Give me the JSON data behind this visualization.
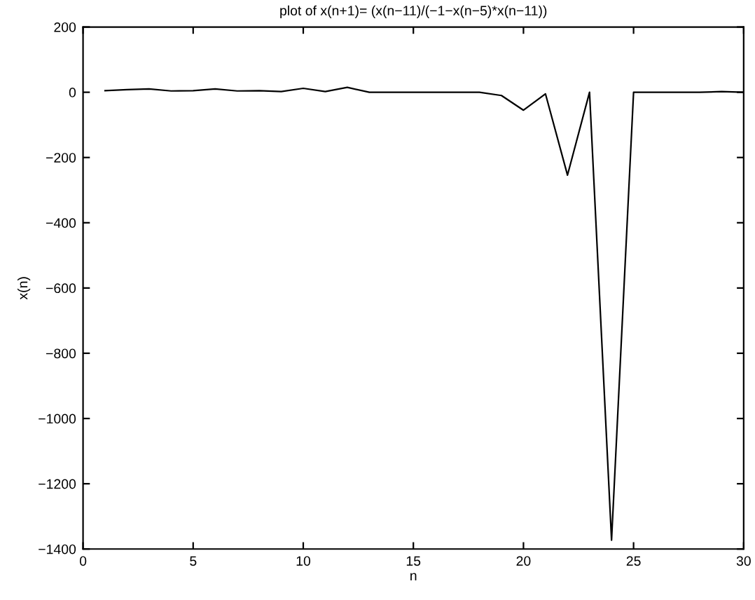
{
  "chart_data": {
    "type": "line",
    "title": "plot of x(n+1)= (x(n−11)/(−1−x(n−5)*x(n−11))",
    "xlabel": "n",
    "ylabel": "x(n)",
    "x": [
      1,
      2,
      3,
      4,
      5,
      6,
      7,
      8,
      9,
      10,
      11,
      12,
      13,
      14,
      15,
      16,
      17,
      18,
      19,
      20,
      21,
      22,
      23,
      24,
      25,
      26,
      27,
      28,
      29,
      30
    ],
    "series": [
      {
        "color": "#000000",
        "values": [
          5,
          8,
          10,
          4,
          5,
          10,
          4,
          5,
          2,
          12,
          2,
          15,
          0,
          0,
          0,
          0,
          0,
          0,
          -10,
          -55,
          -5,
          -254,
          0,
          -1373,
          0,
          0,
          0,
          0,
          2,
          0
        ]
      }
    ],
    "xlim": [
      0,
      30
    ],
    "xticks": [
      0,
      5,
      10,
      15,
      20,
      25,
      30
    ],
    "ylim": [
      -1400,
      200
    ],
    "yticks": [
      {
        "value": -1400,
        "label": "−1400"
      },
      {
        "value": -1200,
        "label": "−1200"
      },
      {
        "value": -1000,
        "label": "−1000"
      },
      {
        "value": -800,
        "label": "−800"
      },
      {
        "value": -600,
        "label": "−600"
      },
      {
        "value": -400,
        "label": "−400"
      },
      {
        "value": -200,
        "label": "−200"
      },
      0,
      200
    ],
    "grid": false,
    "marker": "none",
    "line_style": "solid"
  }
}
